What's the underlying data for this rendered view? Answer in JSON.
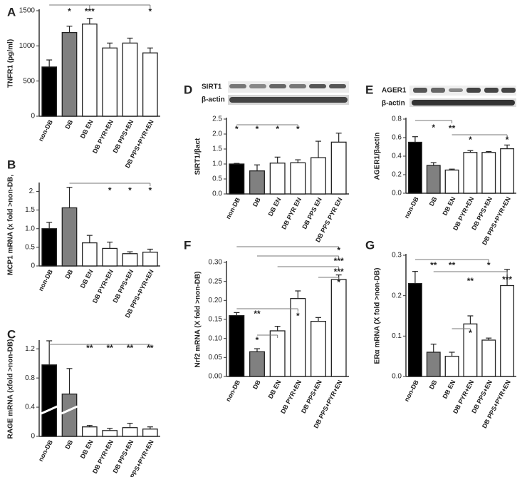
{
  "chart_data": [
    {
      "type": "bar",
      "label": "A",
      "ylabel": "TNFR1 (pg/ml)",
      "categories": [
        "non-DB",
        "DB",
        "DB EN",
        "DB PYR+EN",
        "DB PPS+EN",
        "DB PPS+PYR+EN"
      ],
      "values": [
        700,
        1190,
        1310,
        970,
        1040,
        900
      ],
      "errors": [
        100,
        90,
        80,
        70,
        70,
        70
      ],
      "colors": [
        "#000000",
        "#808080",
        "#ffffff",
        "#ffffff",
        "#ffffff",
        "#ffffff"
      ],
      "ylim": [
        0,
        1500
      ],
      "yticks": [
        0,
        500,
        1000,
        1500
      ],
      "annotations": [
        "*",
        "***",
        "*"
      ]
    },
    {
      "type": "bar",
      "label": "B",
      "ylabel": "MCP1 mRNA (x fold >non-DB,",
      "categories": [
        "non-DB",
        "DB",
        "DB EN",
        "DB PYR+EN",
        "DB PPS+EN",
        "DB PPS+PYR+EN"
      ],
      "values": [
        1.0,
        1.56,
        0.62,
        0.47,
        0.33,
        0.37
      ],
      "errors": [
        0.17,
        0.55,
        0.2,
        0.17,
        0.05,
        0.08
      ],
      "colors": [
        "#000000",
        "#808080",
        "#ffffff",
        "#ffffff",
        "#ffffff",
        "#ffffff"
      ],
      "ylim": [
        0,
        2.2
      ],
      "yticks": [
        0,
        0.5,
        {
          "value": 1,
          "label": "1.0"
        },
        1.5,
        {
          "value": 2,
          "label": "2."
        }
      ],
      "annotations": [
        "*",
        "*",
        "*"
      ]
    },
    {
      "type": "bar",
      "label": "C",
      "ylabel": "RAGE mRNA (xfold >non-DB)",
      "categories": [
        "non-DB",
        "DB",
        "DB EN",
        "DB PYR+EN",
        "DB PPS+EN",
        "DB PPS+PYR+EN"
      ],
      "values": [
        0.98,
        0.58,
        0.13,
        0.08,
        0.12,
        0.1
      ],
      "errors": [
        0.33,
        0.35,
        0.02,
        0.03,
        0.06,
        0.03
      ],
      "colors": [
        "#000000",
        "#808080",
        "#ffffff",
        "#ffffff",
        "#ffffff",
        "#ffffff"
      ],
      "ylim": [
        0,
        1.3
      ],
      "yticks": [
        0,
        0.4,
        0.8,
        1.2
      ],
      "annotations": [
        "**",
        "**",
        "**",
        "**"
      ]
    },
    {
      "type": "bar",
      "label": "D",
      "ylabel": "SIRT1/βact",
      "blot_labels": [
        "SIRT1",
        "β-actin"
      ],
      "categories": [
        "non-DB",
        "DB",
        "DB EN",
        "DB PYR EN",
        "DB PPS EN",
        "DB PPS PYR EN"
      ],
      "values": [
        1.0,
        0.77,
        1.03,
        1.04,
        1.21,
        1.73
      ],
      "errors": [
        0.02,
        0.2,
        0.2,
        0.1,
        0.55,
        0.3
      ],
      "colors": [
        "#000000",
        "#808080",
        "#ffffff",
        "#ffffff",
        "#ffffff",
        "#ffffff"
      ],
      "ylim": [
        0,
        2.5
      ],
      "yticks": [
        {
          "value": 0,
          "label": "0.0"
        },
        0.5,
        {
          "value": 1,
          "label": "1.0"
        },
        1.5,
        {
          "value": 2,
          "label": "2.0"
        },
        2.5
      ],
      "annotations": [
        "*",
        "*",
        "*",
        "*"
      ]
    },
    {
      "type": "bar",
      "label": "E",
      "ylabel": "AGER1/βactin",
      "blot_labels": [
        "AGER1",
        "β-actin"
      ],
      "categories": [
        "non-DB",
        "DB",
        "DB EN",
        "DB PYR+EN",
        "DB PPS+EN",
        "DB PPS+PYR+EN"
      ],
      "values": [
        0.55,
        0.3,
        0.25,
        0.44,
        0.44,
        0.48
      ],
      "errors": [
        0.06,
        0.03,
        0.01,
        0.02,
        0.01,
        0.04
      ],
      "colors": [
        "#000000",
        "#808080",
        "#ffffff",
        "#ffffff",
        "#ffffff",
        "#ffffff"
      ],
      "ylim": [
        0,
        0.8
      ],
      "yticks": [
        {
          "value": 0,
          "label": "0.0"
        },
        0.2,
        0.4,
        0.6,
        0.8
      ],
      "annotations": [
        "*",
        "**",
        "*",
        "*"
      ]
    },
    {
      "type": "bar",
      "label": "F",
      "ylabel": "Nrf2 mRNA (X fold >non-DB)",
      "categories": [
        "non-DB",
        "DB",
        "DB EN",
        "DB PYR+EN",
        "DB PPS+EN",
        "DB PPS+PYR+EN"
      ],
      "values": [
        0.16,
        0.065,
        0.12,
        0.205,
        0.145,
        0.255
      ],
      "errors": [
        0.008,
        0.008,
        0.012,
        0.02,
        0.01,
        0.012
      ],
      "colors": [
        "#000000",
        "#808080",
        "#ffffff",
        "#ffffff",
        "#ffffff",
        "#ffffff"
      ],
      "ylim": [
        0,
        0.3
      ],
      "yticks": [
        {
          "value": 0,
          "label": "0.00"
        },
        0.05,
        {
          "value": 0.1,
          "label": "0.10"
        },
        0.15,
        {
          "value": 0.2,
          "label": "0.20"
        },
        0.25,
        {
          "value": 0.3,
          "label": "0.30"
        }
      ],
      "annotations": [
        "*",
        "***",
        "***",
        "*",
        "**",
        "*",
        "*"
      ]
    },
    {
      "type": "bar",
      "label": "G",
      "ylabel": "ERα mRNA (X fold >non-DB)",
      "categories": [
        "non-DB",
        "DB",
        "DB EN",
        "DB PYR+EN",
        "DB PPS+EN",
        "DB PPS+PYR+EN"
      ],
      "values": [
        0.23,
        0.06,
        0.05,
        0.13,
        0.09,
        0.225
      ],
      "errors": [
        0.03,
        0.02,
        0.01,
        0.02,
        0.005,
        0.04
      ],
      "colors": [
        "#000000",
        "#808080",
        "#ffffff",
        "#ffffff",
        "#ffffff",
        "#ffffff"
      ],
      "ylim": [
        0,
        0.3
      ],
      "yticks": [
        {
          "value": 0,
          "label": "0.0"
        },
        0.1,
        0.2,
        {
          "value": 0.3,
          "label": "0.3"
        }
      ],
      "annotations": [
        "**",
        "**",
        "*",
        "**",
        "***",
        "*"
      ]
    }
  ]
}
